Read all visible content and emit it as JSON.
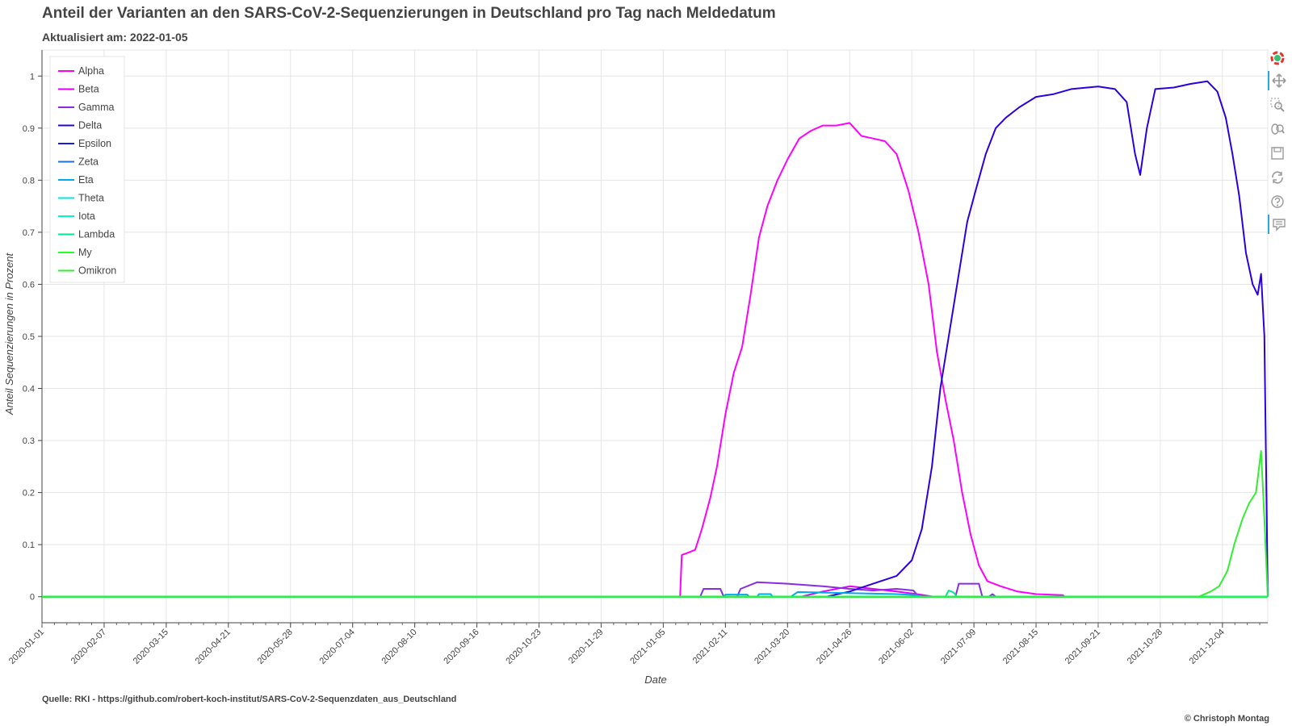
{
  "header": {
    "title": "Anteil der Varianten an den SARS-CoV-2-Sequenzierungen in Deutschland pro Tag nach Meldedatum",
    "subtitle": "Aktualisiert am: 2022-01-05"
  },
  "footer": {
    "source": "Quelle: RKI - https://github.com/robert-koch-institut/SARS-CoV-2-Sequenzdaten_aus_Deutschland",
    "copyright": "© Christoph Montag"
  },
  "toolbar": {
    "icons": [
      "bokeh-logo-icon",
      "pan-icon",
      "box-zoom-icon",
      "wheel-zoom-icon",
      "save-icon",
      "reset-icon",
      "help-icon",
      "hover-icon"
    ]
  },
  "chart_data": {
    "type": "line",
    "xlabel": "Date",
    "ylabel": "Anteil Sequenzierungen in Prozent",
    "xlim": [
      "2020-01-01",
      "2021-12-31"
    ],
    "ylim": [
      -0.05,
      1.05
    ],
    "x_ticks": [
      "2020-01-01",
      "2020-02-07",
      "2020-03-15",
      "2020-04-21",
      "2020-05-28",
      "2020-07-04",
      "2020-08-10",
      "2020-09-16",
      "2020-10-23",
      "2020-11-29",
      "2021-01-05",
      "2021-02-11",
      "2021-03-20",
      "2021-04-26",
      "2021-06-02",
      "2021-07-09",
      "2021-08-15",
      "2021-09-21",
      "2021-10-28",
      "2021-12-04"
    ],
    "y_ticks": [
      0,
      0.1,
      0.2,
      0.3,
      0.4,
      0.5,
      0.6,
      0.7,
      0.8,
      0.9,
      1
    ],
    "grid": true,
    "legend_position": "top-left",
    "series": [
      {
        "name": "Alpha",
        "color": "#ff00ff",
        "points": [
          [
            "2020-01-01",
            0
          ],
          [
            "2021-01-15",
            0
          ],
          [
            "2021-01-16",
            0.08
          ],
          [
            "2021-01-20",
            0.085
          ],
          [
            "2021-01-24",
            0.09
          ],
          [
            "2021-01-28",
            0.13
          ],
          [
            "2021-02-02",
            0.19
          ],
          [
            "2021-02-06",
            0.25
          ],
          [
            "2021-02-11",
            0.35
          ],
          [
            "2021-02-16",
            0.43
          ],
          [
            "2021-02-21",
            0.48
          ],
          [
            "2021-02-26",
            0.58
          ],
          [
            "2021-03-03",
            0.69
          ],
          [
            "2021-03-08",
            0.75
          ],
          [
            "2021-03-14",
            0.8
          ],
          [
            "2021-03-20",
            0.84
          ],
          [
            "2021-03-27",
            0.88
          ],
          [
            "2021-04-03",
            0.895
          ],
          [
            "2021-04-10",
            0.905
          ],
          [
            "2021-04-18",
            0.905
          ],
          [
            "2021-04-26",
            0.91
          ],
          [
            "2021-05-03",
            0.885
          ],
          [
            "2021-05-10",
            0.88
          ],
          [
            "2021-05-17",
            0.875
          ],
          [
            "2021-05-24",
            0.85
          ],
          [
            "2021-05-31",
            0.78
          ],
          [
            "2021-06-06",
            0.7
          ],
          [
            "2021-06-12",
            0.6
          ],
          [
            "2021-06-17",
            0.47
          ],
          [
            "2021-06-22",
            0.38
          ],
          [
            "2021-06-27",
            0.3
          ],
          [
            "2021-07-02",
            0.2
          ],
          [
            "2021-07-07",
            0.12
          ],
          [
            "2021-07-12",
            0.06
          ],
          [
            "2021-07-17",
            0.03
          ],
          [
            "2021-07-25",
            0.02
          ],
          [
            "2021-08-04",
            0.01
          ],
          [
            "2021-08-15",
            0.005
          ],
          [
            "2021-08-31",
            0.003
          ],
          [
            "2021-09-01",
            0
          ],
          [
            "2021-12-31",
            0
          ]
        ]
      },
      {
        "name": "Beta",
        "color": "#e000ff",
        "points": [
          [
            "2020-01-01",
            0
          ],
          [
            "2021-03-28",
            0
          ],
          [
            "2021-04-10",
            0.01
          ],
          [
            "2021-04-26",
            0.02
          ],
          [
            "2021-05-10",
            0.015
          ],
          [
            "2021-05-24",
            0.01
          ],
          [
            "2021-06-05",
            0.005
          ],
          [
            "2021-06-15",
            0
          ],
          [
            "2021-12-31",
            0
          ]
        ]
      },
      {
        "name": "Gamma",
        "color": "#8a2be2",
        "points": [
          [
            "2020-01-01",
            0
          ],
          [
            "2021-01-27",
            0
          ],
          [
            "2021-01-29",
            0.015
          ],
          [
            "2021-02-08",
            0.015
          ],
          [
            "2021-02-10",
            0
          ],
          [
            "2021-02-18",
            0
          ],
          [
            "2021-02-20",
            0.015
          ],
          [
            "2021-03-02",
            0.028
          ],
          [
            "2021-03-20",
            0.025
          ],
          [
            "2021-04-10",
            0.02
          ],
          [
            "2021-04-26",
            0.015
          ],
          [
            "2021-05-10",
            0.012
          ],
          [
            "2021-05-24",
            0.015
          ],
          [
            "2021-06-03",
            0.012
          ],
          [
            "2021-06-06",
            0
          ],
          [
            "2021-06-28",
            0
          ],
          [
            "2021-06-30",
            0.025
          ],
          [
            "2021-07-12",
            0.025
          ],
          [
            "2021-07-14",
            0
          ],
          [
            "2021-07-18",
            0
          ],
          [
            "2021-07-20",
            0.005
          ],
          [
            "2021-07-22",
            0
          ],
          [
            "2021-12-31",
            0
          ]
        ]
      },
      {
        "name": "Delta",
        "color": "#2b00e0",
        "points": [
          [
            "2020-01-01",
            0
          ],
          [
            "2021-04-12",
            0
          ],
          [
            "2021-04-26",
            0.01
          ],
          [
            "2021-05-10",
            0.025
          ],
          [
            "2021-05-24",
            0.04
          ],
          [
            "2021-06-02",
            0.07
          ],
          [
            "2021-06-08",
            0.13
          ],
          [
            "2021-06-14",
            0.25
          ],
          [
            "2021-06-19",
            0.4
          ],
          [
            "2021-06-25",
            0.52
          ],
          [
            "2021-06-30",
            0.62
          ],
          [
            "2021-07-05",
            0.72
          ],
          [
            "2021-07-10",
            0.78
          ],
          [
            "2021-07-16",
            0.85
          ],
          [
            "2021-07-22",
            0.9
          ],
          [
            "2021-07-28",
            0.92
          ],
          [
            "2021-08-05",
            0.94
          ],
          [
            "2021-08-15",
            0.96
          ],
          [
            "2021-08-25",
            0.965
          ],
          [
            "2021-09-05",
            0.975
          ],
          [
            "2021-09-21",
            0.98
          ],
          [
            "2021-10-01",
            0.975
          ],
          [
            "2021-10-08",
            0.95
          ],
          [
            "2021-10-13",
            0.85
          ],
          [
            "2021-10-16",
            0.81
          ],
          [
            "2021-10-20",
            0.9
          ],
          [
            "2021-10-25",
            0.975
          ],
          [
            "2021-11-05",
            0.978
          ],
          [
            "2021-11-15",
            0.985
          ],
          [
            "2021-11-25",
            0.99
          ],
          [
            "2021-12-01",
            0.97
          ],
          [
            "2021-12-06",
            0.92
          ],
          [
            "2021-12-10",
            0.85
          ],
          [
            "2021-12-14",
            0.77
          ],
          [
            "2021-12-18",
            0.66
          ],
          [
            "2021-12-22",
            0.6
          ],
          [
            "2021-12-25",
            0.58
          ],
          [
            "2021-12-27",
            0.62
          ],
          [
            "2021-12-29",
            0.5
          ],
          [
            "2021-12-31",
            0
          ]
        ]
      },
      {
        "name": "Epsilon",
        "color": "#1a1ae6",
        "points": [
          [
            "2020-01-01",
            0
          ],
          [
            "2021-12-31",
            0
          ]
        ]
      },
      {
        "name": "Zeta",
        "color": "#1e6fe0",
        "points": [
          [
            "2020-01-01",
            0
          ],
          [
            "2021-12-31",
            0
          ]
        ]
      },
      {
        "name": "Eta",
        "color": "#00aaee",
        "points": [
          [
            "2020-01-01",
            0
          ],
          [
            "2021-02-10",
            0
          ],
          [
            "2021-02-11",
            0.004
          ],
          [
            "2021-02-24",
            0.004
          ],
          [
            "2021-02-25",
            0
          ],
          [
            "2021-03-02",
            0
          ],
          [
            "2021-03-03",
            0.005
          ],
          [
            "2021-03-10",
            0.005
          ],
          [
            "2021-03-11",
            0
          ],
          [
            "2021-03-22",
            0
          ],
          [
            "2021-03-26",
            0.009
          ],
          [
            "2021-04-10",
            0.008
          ],
          [
            "2021-04-26",
            0.007
          ],
          [
            "2021-05-10",
            0.006
          ],
          [
            "2021-05-24",
            0.005
          ],
          [
            "2021-06-05",
            0.003
          ],
          [
            "2021-06-08",
            0
          ],
          [
            "2021-12-31",
            0
          ]
        ]
      },
      {
        "name": "Theta",
        "color": "#00e5ee",
        "points": [
          [
            "2020-01-01",
            0
          ],
          [
            "2021-12-31",
            0
          ]
        ]
      },
      {
        "name": "Iota",
        "color": "#00f5c8",
        "points": [
          [
            "2020-01-01",
            0
          ],
          [
            "2021-12-31",
            0
          ]
        ]
      },
      {
        "name": "Lambda",
        "color": "#00e890",
        "points": [
          [
            "2020-01-01",
            0
          ],
          [
            "2021-06-22",
            0
          ],
          [
            "2021-06-24",
            0.012
          ],
          [
            "2021-06-27",
            0.008
          ],
          [
            "2021-06-29",
            0
          ],
          [
            "2021-12-31",
            0
          ]
        ]
      },
      {
        "name": "My",
        "color": "#22ff22",
        "points": [
          [
            "2020-01-01",
            0
          ],
          [
            "2021-12-31",
            0
          ]
        ]
      },
      {
        "name": "Omikron",
        "color": "#33ee33",
        "points": [
          [
            "2020-01-01",
            0
          ],
          [
            "2021-11-20",
            0
          ],
          [
            "2021-11-27",
            0.01
          ],
          [
            "2021-12-02",
            0.02
          ],
          [
            "2021-12-07",
            0.05
          ],
          [
            "2021-12-11",
            0.1
          ],
          [
            "2021-12-16",
            0.15
          ],
          [
            "2021-12-20",
            0.18
          ],
          [
            "2021-12-24",
            0.2
          ],
          [
            "2021-12-27",
            0.28
          ],
          [
            "2021-12-29",
            0.15
          ],
          [
            "2021-12-31",
            0
          ]
        ]
      }
    ]
  }
}
